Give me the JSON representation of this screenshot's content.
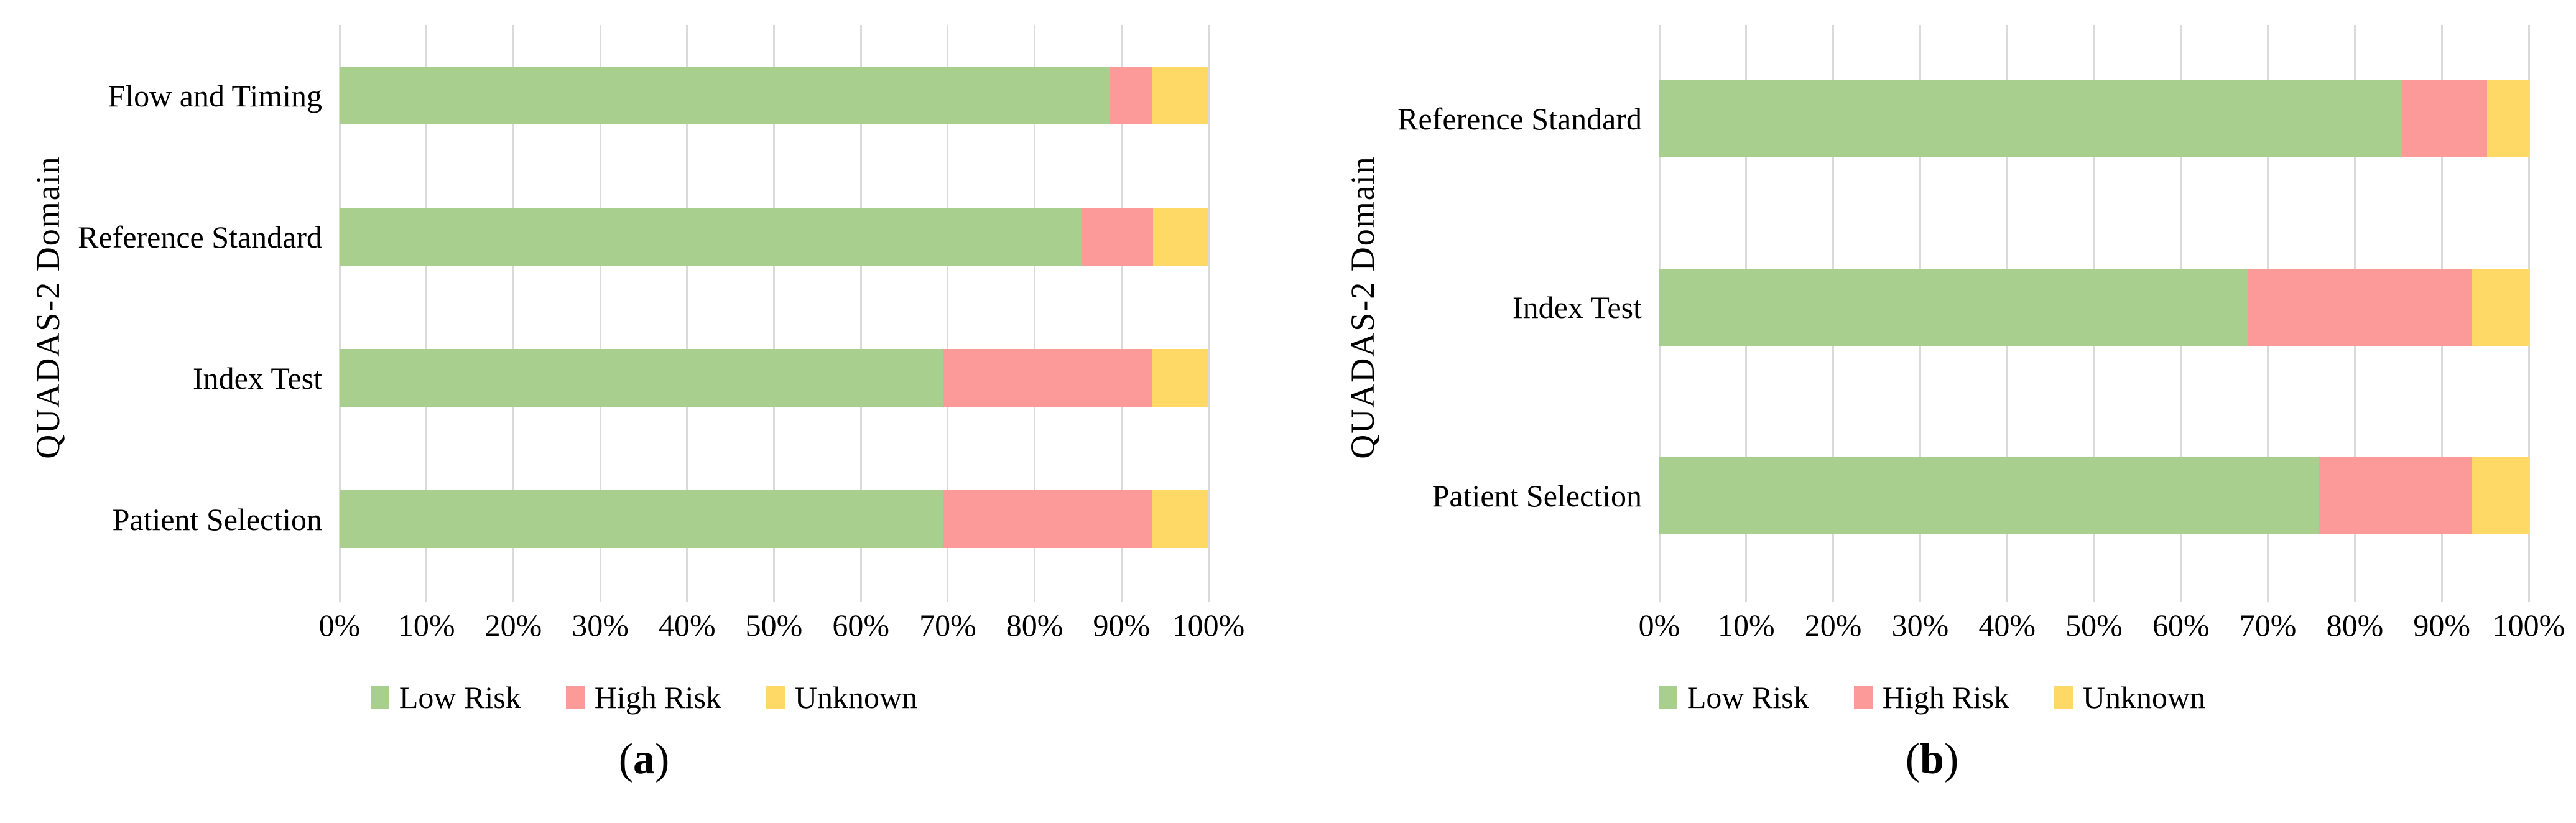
{
  "colors": {
    "low_risk": "#A8CF8D",
    "high_risk": "#FB9A98",
    "unknown": "#FED966",
    "gridline": "#DADADA"
  },
  "chart_data": [
    {
      "type": "bar",
      "orientation": "horizontal",
      "stacked": true,
      "grid": "vertical",
      "legend_position": "bottom",
      "ylabel": "QUADAS-2 Domain",
      "xlabel": "",
      "xlim": [
        0,
        100
      ],
      "xticks": [
        "0%",
        "10%",
        "20%",
        "30%",
        "40%",
        "50%",
        "60%",
        "70%",
        "80%",
        "90%",
        "100%"
      ],
      "categories": [
        "Flow and Timing",
        "Reference Standard",
        "Index Test",
        "Patient Selection"
      ],
      "series": [
        {
          "name": "Low Risk",
          "color": "#A8CF8D",
          "values": [
            88.7,
            85.5,
            69.4,
            69.4
          ]
        },
        {
          "name": "High Risk",
          "color": "#FB9A98",
          "values": [
            4.8,
            8.1,
            24.1,
            24.1
          ]
        },
        {
          "name": "Unknown",
          "color": "#FED966",
          "values": [
            6.5,
            6.4,
            6.5,
            6.5
          ]
        }
      ],
      "caption": {
        "open": "(",
        "letter": "a",
        "close": ")"
      }
    },
    {
      "type": "bar",
      "orientation": "horizontal",
      "stacked": true,
      "grid": "vertical",
      "legend_position": "bottom",
      "ylabel": "QUADAS-2 Domain",
      "xlabel": "",
      "xlim": [
        0,
        100
      ],
      "xticks": [
        "0%",
        "10%",
        "20%",
        "30%",
        "40%",
        "50%",
        "60%",
        "70%",
        "80%",
        "90%",
        "100%"
      ],
      "categories": [
        "Reference Standard",
        "Index Test",
        "Patient Selection"
      ],
      "series": [
        {
          "name": "Low Risk",
          "color": "#A8CF8D",
          "values": [
            85.5,
            67.7,
            75.8
          ]
        },
        {
          "name": "High Risk",
          "color": "#FB9A98",
          "values": [
            9.7,
            25.8,
            17.7
          ]
        },
        {
          "name": "Unknown",
          "color": "#FED966",
          "values": [
            4.8,
            6.5,
            6.5
          ]
        }
      ],
      "caption": {
        "open": "(",
        "letter": "b",
        "close": ")"
      }
    }
  ]
}
